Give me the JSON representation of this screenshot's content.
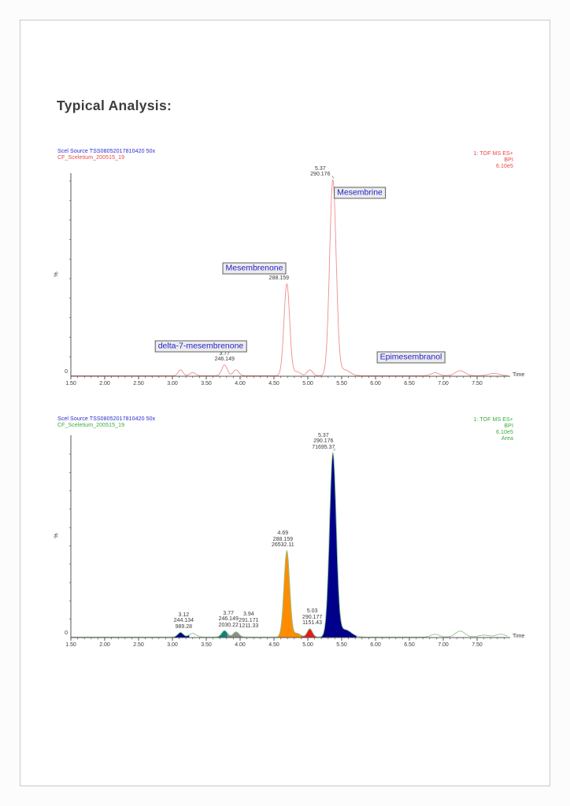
{
  "page": {
    "title": "Typical Analysis:"
  },
  "chart_data": [
    {
      "type": "line",
      "role": "BPI chromatogram with compound labels",
      "header_left": [
        "Scel Source TSS08052017810420 50x",
        "CF_Sceletium_200515_19"
      ],
      "header_left_colors": [
        "#2a2ad0",
        "#ef4444"
      ],
      "header_right": [
        "1: TOF MS ES+",
        "BPI",
        "6.10e5"
      ],
      "header_right_color": "#ef4444",
      "trace_color": "#f28c8c",
      "xlabel": "Time",
      "ylabel": "%",
      "y_zero_label": "0",
      "xlim": [
        1.5,
        7.95
      ],
      "x_tick_labels": [
        "1.50",
        "2.00",
        "2.50",
        "3.00",
        "3.50",
        "4.00",
        "4.50",
        "5.00",
        "5.50",
        "6.00",
        "6.50",
        "7.00",
        "7.50"
      ],
      "peaks": [
        {
          "rt": 3.12,
          "height_pct": 3.0,
          "sigma": 0.035
        },
        {
          "rt": 3.3,
          "height_pct": 1.6,
          "sigma": 0.04
        },
        {
          "rt": 3.77,
          "height_pct": 5.5,
          "sigma": 0.04,
          "mz": "246.149",
          "compound": "delta-7-mesembrenone"
        },
        {
          "rt": 3.94,
          "height_pct": 3.0,
          "sigma": 0.04
        },
        {
          "rt": 4.69,
          "height_pct": 47,
          "sigma": 0.042,
          "mz": "288.159",
          "compound": "Mesembrenone"
        },
        {
          "rt": 4.84,
          "height_pct": 2.0,
          "sigma": 0.05
        },
        {
          "rt": 5.03,
          "height_pct": 3.0,
          "sigma": 0.04
        },
        {
          "rt": 5.37,
          "height_pct": 100,
          "sigma": 0.048,
          "mz": "290.176",
          "compound": "Mesembrine"
        },
        {
          "rt": 5.54,
          "height_pct": 3.0,
          "sigma": 0.08
        },
        {
          "rt": 6.88,
          "height_pct": 1.5,
          "sigma": 0.06
        },
        {
          "rt": 7.25,
          "height_pct": 2.6,
          "sigma": 0.07
        },
        {
          "rt": 7.75,
          "height_pct": 1.2,
          "sigma": 0.08
        }
      ],
      "annotations": [
        {
          "t": 3.77,
          "lines": [
            "3.77",
            "246.149"
          ],
          "dx": 0
        },
        {
          "t": 4.69,
          "lines": [
            "4.69",
            "288.159"
          ],
          "dx": -10
        },
        {
          "t": 5.37,
          "lines": [
            "5.37",
            "290.176"
          ],
          "dx": -16,
          "tick": true
        }
      ],
      "compound_labels": [
        "delta-7-mesembrenone",
        "Mesembrenone",
        "Mesembrine",
        "Epimesembranol"
      ]
    },
    {
      "type": "area",
      "role": "BPI chromatogram with integrated peak areas",
      "header_left": [
        "Scel Source TSS08052017810420 50x",
        "CF_Sceletium_200515_19"
      ],
      "header_left_colors": [
        "#2a2ad0",
        "#3aaa3a"
      ],
      "header_right": [
        "1: TOF MS ES+",
        "BPI",
        "6.10e5",
        "Area"
      ],
      "header_right_color": "#3aaa3a",
      "trace_color": "#8fc48f",
      "xlabel": "Time",
      "ylabel": "%",
      "y_zero_label": "0",
      "xlim": [
        1.5,
        7.95
      ],
      "x_tick_labels": [
        "1.50",
        "2.00",
        "2.50",
        "3.00",
        "3.50",
        "4.00",
        "4.50",
        "5.00",
        "5.50",
        "6.00",
        "6.50",
        "7.00",
        "7.50"
      ],
      "peaks": [
        {
          "rt": 3.12,
          "height_pct": 2.5,
          "sigma": 0.04,
          "fill": "#00008b",
          "mz": "244.134",
          "area": "989.28"
        },
        {
          "rt": 3.3,
          "height_pct": 2.0,
          "sigma": 0.05
        },
        {
          "rt": 3.77,
          "height_pct": 3.5,
          "sigma": 0.042,
          "fill": "#0f8080",
          "mz": "246.149",
          "area": "2030.22"
        },
        {
          "rt": 3.94,
          "height_pct": 2.8,
          "sigma": 0.042,
          "fill": "#8c8c8c",
          "mz": "291.171",
          "area": "1211.33"
        },
        {
          "rt": 4.69,
          "height_pct": 47,
          "sigma": 0.042,
          "fill": "#ff8c00",
          "mz": "288.159",
          "area": "26532.11",
          "fill_range": [
            4.55,
            4.92
          ]
        },
        {
          "rt": 4.84,
          "height_pct": 2.0,
          "sigma": 0.05
        },
        {
          "rt": 5.03,
          "height_pct": 4.5,
          "sigma": 0.038,
          "fill": "#e31b1b",
          "mz": "290.177",
          "area": "1151.43"
        },
        {
          "rt": 5.37,
          "height_pct": 100,
          "sigma": 0.05,
          "fill": "#00008b",
          "mz": "290.176",
          "area": "71695.37",
          "fill_range": [
            5.18,
            5.72
          ]
        },
        {
          "rt": 5.55,
          "height_pct": 4.0,
          "sigma": 0.09
        },
        {
          "rt": 6.88,
          "height_pct": 1.5,
          "sigma": 0.06
        },
        {
          "rt": 7.25,
          "height_pct": 3.2,
          "sigma": 0.07
        },
        {
          "rt": 7.6,
          "height_pct": 1.0,
          "sigma": 0.08
        },
        {
          "rt": 7.85,
          "height_pct": 1.5,
          "sigma": 0.07
        }
      ],
      "annotations": [
        {
          "t": 3.12,
          "lines": [
            "3.12",
            "244.134",
            "989.28"
          ],
          "dx": 4
        },
        {
          "t": 3.77,
          "lines": [
            "3.77",
            "246.149",
            "2030.22"
          ],
          "dx": 5
        },
        {
          "t": 3.94,
          "lines": [
            "3.94",
            "291.171",
            "1211.33"
          ],
          "dx": 16
        },
        {
          "t": 4.69,
          "lines": [
            "4.69",
            "288.159",
            "26532.11"
          ],
          "dx": -5
        },
        {
          "t": 5.03,
          "lines": [
            "5.03",
            "290.177",
            "1151.43"
          ],
          "dx": 3
        },
        {
          "t": 5.37,
          "lines": [
            "5.37",
            "290.176",
            "71695.37"
          ],
          "dx": -12,
          "tick": true
        }
      ],
      "compound_labels": []
    }
  ]
}
